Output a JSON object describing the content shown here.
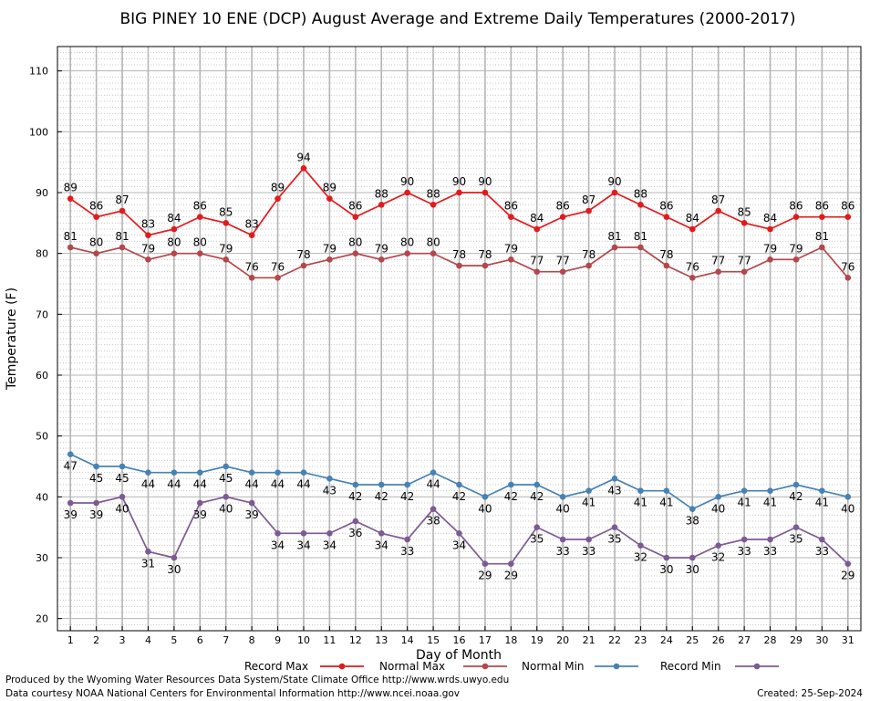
{
  "chart_data": {
    "type": "line",
    "title": "BIG PINEY 10 ENE (DCP) August Average and Extreme Daily Temperatures (2000-2017)",
    "xlabel": "Day of Month",
    "ylabel": "Temperature (F)",
    "ylim": [
      18,
      114
    ],
    "xlim": [
      0.5,
      31.5
    ],
    "y_ticks": [
      20,
      30,
      40,
      50,
      60,
      70,
      80,
      90,
      100,
      110
    ],
    "x": [
      1,
      2,
      3,
      4,
      5,
      6,
      7,
      8,
      9,
      10,
      11,
      12,
      13,
      14,
      15,
      16,
      17,
      18,
      19,
      20,
      21,
      22,
      23,
      24,
      25,
      26,
      27,
      28,
      29,
      30,
      31
    ],
    "grid": true,
    "legend_position": "bottom",
    "series": [
      {
        "name": "Record Max",
        "color": "#e31a1c",
        "label_side": "above",
        "values": [
          89,
          86,
          87,
          83,
          84,
          86,
          85,
          83,
          89,
          94,
          89,
          86,
          88,
          90,
          88,
          90,
          90,
          86,
          84,
          86,
          87,
          90,
          88,
          86,
          84,
          87,
          85,
          84,
          86,
          86,
          86
        ]
      },
      {
        "name": "Normal Max",
        "color": "#b5464b",
        "label_side": "above",
        "values": [
          81,
          80,
          81,
          79,
          80,
          80,
          79,
          76,
          76,
          78,
          79,
          80,
          79,
          80,
          80,
          78,
          78,
          79,
          77,
          77,
          78,
          81,
          81,
          78,
          76,
          77,
          77,
          79,
          79,
          81,
          76
        ]
      },
      {
        "name": "Normal Min",
        "color": "#4682b4",
        "label_side": "below",
        "values": [
          47,
          45,
          45,
          44,
          44,
          44,
          45,
          44,
          44,
          44,
          43,
          42,
          42,
          42,
          44,
          42,
          40,
          42,
          42,
          40,
          41,
          43,
          41,
          41,
          38,
          40,
          41,
          41,
          42,
          41,
          40
        ]
      },
      {
        "name": "Record Min",
        "color": "#7d5a94",
        "label_side": "below",
        "values": [
          39,
          39,
          40,
          31,
          30,
          39,
          40,
          39,
          34,
          34,
          34,
          36,
          34,
          33,
          38,
          34,
          29,
          29,
          35,
          33,
          33,
          35,
          32,
          30,
          30,
          32,
          33,
          33,
          35,
          33,
          29
        ]
      }
    ]
  },
  "footer": {
    "left_line1": "Produced by the Wyoming Water Resources Data System/State Climate Office http://www.wrds.uwyo.edu",
    "left_line2": "Data courtesy NOAA National Centers for Environmental Information http://www.ncei.noaa.gov",
    "created": "Created:  25-Sep-2024"
  }
}
